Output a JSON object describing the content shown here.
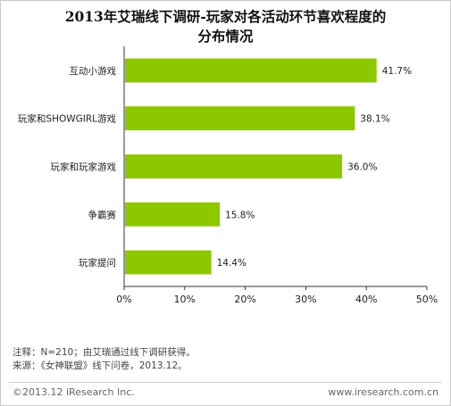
{
  "chart_data": {
    "type": "bar",
    "orientation": "horizontal",
    "title_line1": "2013年艾瑞线下调研-玩家对各活动环节喜欢程度的",
    "title_line2": "分布情况",
    "categories": [
      "互动小游戏",
      "玩家和SHOWGIRL游戏",
      "玩家和玩家游戏",
      "争霸赛",
      "玩家提问"
    ],
    "values": [
      41.7,
      38.1,
      36.0,
      15.8,
      14.4
    ],
    "value_labels": [
      "41.7%",
      "38.1%",
      "36.0%",
      "15.8%",
      "14.4%"
    ],
    "xlim": [
      0,
      50
    ],
    "xticks": [
      "0%",
      "10%",
      "20%",
      "30%",
      "40%",
      "50%"
    ],
    "xtick_values": [
      0,
      10,
      20,
      30,
      40,
      50
    ],
    "grid": false,
    "bar_color": "#8cc800"
  },
  "notes": {
    "line1": "注释：N=210；由艾瑞通过线下调研获得。",
    "line2": "来源：《女神联盟》线下问卷，2013.12。"
  },
  "footer": {
    "copyright": "©2013.12 iResearch Inc.",
    "website": "www.iresearch.com.cn"
  }
}
